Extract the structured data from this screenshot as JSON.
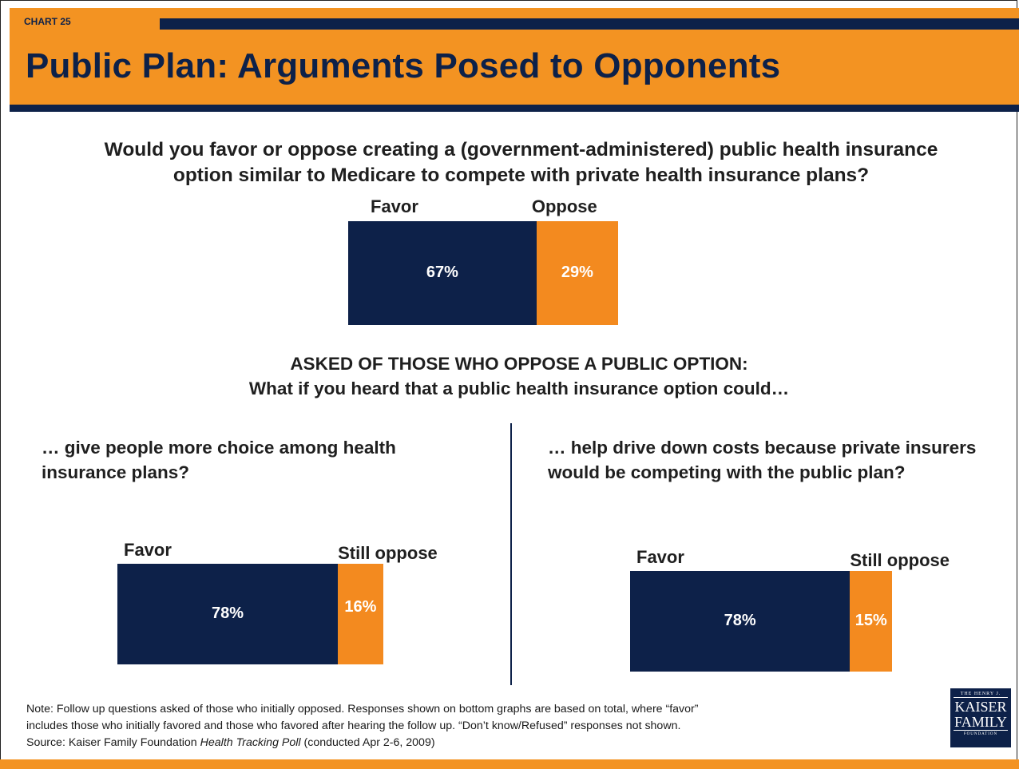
{
  "chart_label": "CHART 25",
  "title": "Public Plan: Arguments Posed to Opponents",
  "main_question": "Would you favor or oppose creating a (government-administered) public health insurance option similar to Medicare to compete with private health insurance plans?",
  "followup_header": "ASKED OF THOSE WHO OPPOSE A PUBLIC OPTION:",
  "followup_sub": "What if you heard that a public health insurance option could…",
  "left_question": {
    "line1": "… give people more choice among health",
    "line2": "insurance plans?"
  },
  "right_question": {
    "line1": "… help drive down costs because private insurers",
    "line2": "would be competing with the public plan?"
  },
  "note": {
    "line1": "Note: Follow up questions asked of those who initially opposed.  Responses shown on bottom graphs are based on total, where “favor”",
    "line2": "includes those who initially favored and those who favored after hearing the follow up. “Don’t know/Refused” responses not shown.",
    "source_prefix": "Source: Kaiser Family Foundation ",
    "source_italic": "Health Tracking Poll",
    "source_suffix": " (conducted Apr 2-6, 2009)"
  },
  "logo": {
    "line1": "THE HENRY J.",
    "line2": "KAISER",
    "line3": "FAMILY",
    "line4": "FOUNDATION"
  },
  "colors": {
    "favor": "#0d2149",
    "oppose": "#f38a1f",
    "accent": "#f39322"
  },
  "chart_data": [
    {
      "type": "bar",
      "orientation": "stacked-horizontal",
      "categories": [
        "Favor",
        "Oppose"
      ],
      "values": [
        67,
        29
      ],
      "value_labels": [
        "67%",
        "29%"
      ]
    },
    {
      "type": "bar",
      "orientation": "stacked-horizontal",
      "categories": [
        "Favor",
        "Still oppose"
      ],
      "values": [
        78,
        16
      ],
      "value_labels": [
        "78%",
        "16%"
      ]
    },
    {
      "type": "bar",
      "orientation": "stacked-horizontal",
      "categories": [
        "Favor",
        "Still oppose"
      ],
      "values": [
        78,
        15
      ],
      "value_labels": [
        "78%",
        "15%"
      ]
    }
  ]
}
